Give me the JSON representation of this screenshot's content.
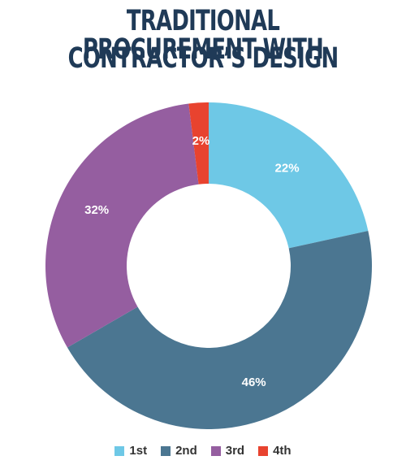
{
  "title_lines": [
    "TRADITIONAL PROCUREMENT WITH",
    "CONTRACTOR’S DESIGN"
  ],
  "chart_data": {
    "type": "pie",
    "donut": true,
    "title": "TRADITIONAL PROCUREMENT WITH CONTRACTOR’S DESIGN",
    "categories": [
      "1st",
      "2nd",
      "3rd",
      "4th"
    ],
    "values": [
      22,
      46,
      32,
      2
    ],
    "labels": [
      "22%",
      "46%",
      "32%",
      "2%"
    ],
    "colors": [
      "#6ec8e6",
      "#4b7691",
      "#955ea0",
      "#e8432f"
    ],
    "legend_position": "bottom"
  }
}
